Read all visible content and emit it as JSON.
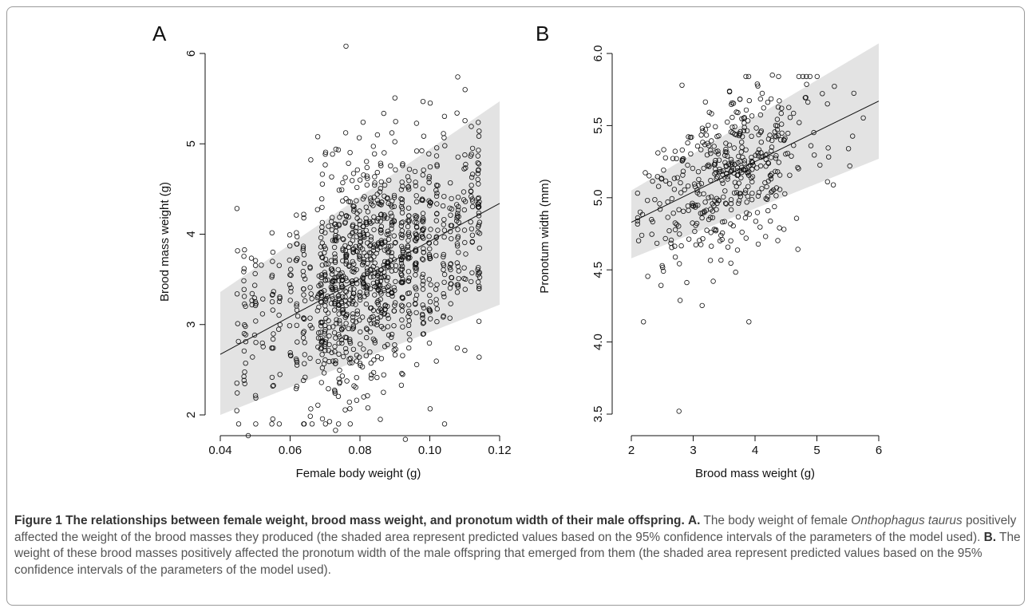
{
  "chart_data": [
    {
      "type": "scatter",
      "panel_label": "A",
      "xlabel": "Female body weight (g)",
      "ylabel": "Brood mass weight (g)",
      "xlim": [
        0.04,
        0.12
      ],
      "ylim": [
        1.72,
        6.1
      ],
      "xticks": [
        "0.04",
        "0.06",
        "0.08",
        "0.10",
        "0.12"
      ],
      "yticks": [
        "2",
        "3",
        "4",
        "5",
        "6"
      ],
      "fit_line": {
        "x": [
          0.04,
          0.12
        ],
        "y": [
          2.67,
          4.34
        ]
      },
      "ci_band": {
        "x": [
          0.04,
          0.12
        ],
        "lower": [
          2.0,
          3.22
        ],
        "upper": [
          3.36,
          5.47
        ]
      },
      "n_points": 1200,
      "notable_points": [
        {
          "x": 0.076,
          "y": 6.08
        },
        {
          "x": 0.108,
          "y": 5.74
        },
        {
          "x": 0.093,
          "y": 1.73
        },
        {
          "x": 0.048,
          "y": 1.77
        },
        {
          "x": 0.073,
          "y": 1.83
        }
      ],
      "x_values": [
        0.045,
        0.047,
        0.049,
        0.05,
        0.052,
        0.055,
        0.057,
        0.06,
        0.062,
        0.064,
        0.066,
        0.068,
        0.069,
        0.07,
        0.071,
        0.072,
        0.073,
        0.074,
        0.075,
        0.076,
        0.077,
        0.078,
        0.079,
        0.08,
        0.081,
        0.082,
        0.083,
        0.084,
        0.085,
        0.086,
        0.087,
        0.088,
        0.089,
        0.09,
        0.092,
        0.094,
        0.096,
        0.098,
        0.1,
        0.102,
        0.104,
        0.106,
        0.108,
        0.11,
        0.112,
        0.114
      ],
      "x_weights": [
        10,
        22,
        6,
        16,
        6,
        22,
        10,
        16,
        22,
        30,
        14,
        16,
        45,
        38,
        14,
        28,
        40,
        35,
        35,
        38,
        26,
        45,
        26,
        28,
        32,
        36,
        30,
        32,
        36,
        42,
        30,
        34,
        26,
        30,
        58,
        44,
        44,
        45,
        36,
        28,
        24,
        22,
        30,
        20,
        22,
        44
      ]
    },
    {
      "type": "scatter",
      "panel_label": "B",
      "xlabel": "Brood mass weight (g)",
      "ylabel": "Pronotum width (mm)",
      "xlim": [
        2,
        6
      ],
      "ylim": [
        3.5,
        6.0
      ],
      "xticks": [
        "2",
        "3",
        "4",
        "5",
        "6"
      ],
      "yticks": [
        "3.5",
        "4.0",
        "4.5",
        "5.0",
        "5.5",
        "6.0"
      ],
      "fit_line": {
        "x": [
          2,
          6
        ],
        "y": [
          4.83,
          5.67
        ]
      },
      "ci_band": {
        "x": [
          2,
          6
        ],
        "lower": [
          4.58,
          5.27
        ],
        "upper": [
          5.05,
          6.07
        ]
      },
      "n_points": 460,
      "notable_points": [
        {
          "x": 2.77,
          "y": 3.52
        },
        {
          "x": 3.9,
          "y": 4.14
        },
        {
          "x": 4.28,
          "y": 5.85
        },
        {
          "x": 2.82,
          "y": 5.78
        }
      ]
    }
  ],
  "caption": {
    "title": "Figure 1 The relationships between female weight, brood mass weight, and pronotum width of their male offspring.",
    "label_a": "A.",
    "text_a1": "The body weight of female ",
    "species": "Onthophagus taurus",
    "text_a2": " positively affected the weight of the brood masses they produced (the shaded area represent predicted values based on the 95% confidence intervals of the parameters of the model used).",
    "label_b": "B.",
    "text_b": "The weight of these brood masses positively affected the pronotum width of the male offspring that emerged from them (the shaded area represent predicted values based on the 95% confidence intervals of the parameters of the model used)."
  },
  "colors": {
    "band": "#e3e3e3",
    "points": "#111111",
    "caption_text": "#555555",
    "frame": "#9a9a9a"
  }
}
